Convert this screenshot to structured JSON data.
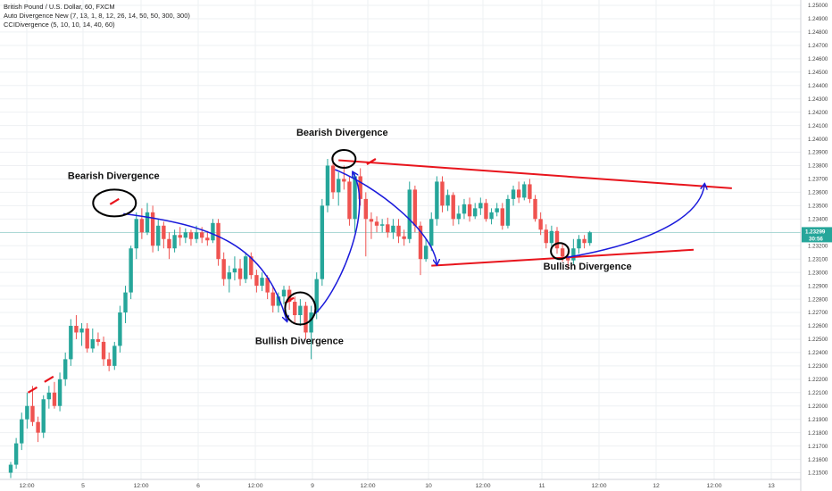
{
  "legend": {
    "title": "British Pound / U.S. Dollar, 60, FXCM",
    "indicator1": "Auto Divergence New (7, 13, 1, 8, 12, 26, 14, 50, 50, 300, 300)",
    "indicator2": "CCIDivergence (5, 10, 10, 14, 40, 60)"
  },
  "current_price": {
    "label": "1.23299",
    "countdown": "30:56",
    "value": 1.23299,
    "color": "#26a69a"
  },
  "colors": {
    "up": "#26a69a",
    "down": "#ef5350",
    "arrow": "#1a1adb",
    "trend": "#e8141c"
  },
  "annotations": [
    {
      "text": "Bearish Divergence",
      "type": "bearish"
    },
    {
      "text": "Bullish Divergence",
      "type": "bullish"
    },
    {
      "text": "Bearish Divergence",
      "type": "bearish"
    },
    {
      "text": "Bullish Divergence",
      "type": "bullish"
    }
  ],
  "chart_data": {
    "type": "candlestick",
    "title": "British Pound / U.S. Dollar, 60, FXCM",
    "ylim": [
      1.2145,
      1.2504
    ],
    "yticks": [
      "1.25000",
      "1.24900",
      "1.24800",
      "1.24700",
      "1.24600",
      "1.24500",
      "1.24400",
      "1.24300",
      "1.24200",
      "1.24100",
      "1.24000",
      "1.23900",
      "1.23800",
      "1.23700",
      "1.23600",
      "1.23500",
      "1.23400",
      "1.23300",
      "1.23200",
      "1.23100",
      "1.23000",
      "1.22900",
      "1.22800",
      "1.22700",
      "1.22600",
      "1.22500",
      "1.22400",
      "1.22300",
      "1.22200",
      "1.22100",
      "1.22000",
      "1.21900",
      "1.21800",
      "1.21700",
      "1.21600",
      "1.21500"
    ],
    "xticks": [
      "12:00",
      "5",
      "12:00",
      "6",
      "12:00",
      "9",
      "12:00",
      "10",
      "12:00",
      "11",
      "12:00",
      "12",
      "12:00",
      "13"
    ],
    "grid": true,
    "candles": [
      [
        1.215,
        1.2158,
        1.2146,
        1.2156
      ],
      [
        1.2156,
        1.2176,
        1.2153,
        1.2172
      ],
      [
        1.2172,
        1.2195,
        1.2167,
        1.219
      ],
      [
        1.219,
        1.221,
        1.2183,
        1.22
      ],
      [
        1.22,
        1.2215,
        1.2185,
        1.2188
      ],
      [
        1.2188,
        1.2192,
        1.2173,
        1.218
      ],
      [
        1.218,
        1.2208,
        1.2176,
        1.2205
      ],
      [
        1.2205,
        1.2215,
        1.2198,
        1.221
      ],
      [
        1.221,
        1.2218,
        1.2198,
        1.22
      ],
      [
        1.22,
        1.2225,
        1.2196,
        1.222
      ],
      [
        1.222,
        1.224,
        1.2215,
        1.2235
      ],
      [
        1.2235,
        1.2265,
        1.223,
        1.226
      ],
      [
        1.226,
        1.2268,
        1.225,
        1.2255
      ],
      [
        1.2255,
        1.2262,
        1.2245,
        1.2258
      ],
      [
        1.2258,
        1.2262,
        1.224,
        1.2243
      ],
      [
        1.2243,
        1.2258,
        1.224,
        1.225
      ],
      [
        1.225,
        1.2255,
        1.2245,
        1.2248
      ],
      [
        1.2248,
        1.2252,
        1.223,
        1.2235
      ],
      [
        1.2235,
        1.224,
        1.2226,
        1.223
      ],
      [
        1.223,
        1.2248,
        1.2227,
        1.2245
      ],
      [
        1.2245,
        1.2275,
        1.224,
        1.227
      ],
      [
        1.227,
        1.229,
        1.2262,
        1.2285
      ],
      [
        1.2285,
        1.232,
        1.228,
        1.2318
      ],
      [
        1.2318,
        1.2345,
        1.231,
        1.234
      ],
      [
        1.234,
        1.2348,
        1.2325,
        1.233
      ],
      [
        1.233,
        1.2352,
        1.2328,
        1.2345
      ],
      [
        1.2345,
        1.235,
        1.2315,
        1.232
      ],
      [
        1.232,
        1.234,
        1.2316,
        1.2335
      ],
      [
        1.2335,
        1.2338,
        1.2318,
        1.2325
      ],
      [
        1.2325,
        1.233,
        1.231,
        1.2318
      ],
      [
        1.2318,
        1.2332,
        1.2315,
        1.2328
      ],
      [
        1.2328,
        1.2334,
        1.232,
        1.2326
      ],
      [
        1.2326,
        1.2333,
        1.2322,
        1.233
      ],
      [
        1.233,
        1.2332,
        1.232,
        1.2325
      ],
      [
        1.2325,
        1.2335,
        1.2322,
        1.233
      ],
      [
        1.233,
        1.2334,
        1.2322,
        1.2326
      ],
      [
        1.2326,
        1.2331,
        1.232,
        1.2324
      ],
      [
        1.2324,
        1.234,
        1.2322,
        1.2337
      ],
      [
        1.2337,
        1.234,
        1.2305,
        1.231
      ],
      [
        1.231,
        1.2315,
        1.229,
        1.2295
      ],
      [
        1.2295,
        1.2305,
        1.2285,
        1.23
      ],
      [
        1.23,
        1.2312,
        1.2294,
        1.2303
      ],
      [
        1.2303,
        1.231,
        1.229,
        1.2295
      ],
      [
        1.2295,
        1.2315,
        1.2292,
        1.2312
      ],
      [
        1.2312,
        1.2315,
        1.2295,
        1.2298
      ],
      [
        1.2298,
        1.2302,
        1.2285,
        1.229
      ],
      [
        1.229,
        1.23,
        1.2286,
        1.2296
      ],
      [
        1.2296,
        1.2298,
        1.228,
        1.2285
      ],
      [
        1.2285,
        1.229,
        1.227,
        1.2275
      ],
      [
        1.2275,
        1.2285,
        1.227,
        1.2282
      ],
      [
        1.2282,
        1.229,
        1.2276,
        1.2287
      ],
      [
        1.2287,
        1.229,
        1.2272,
        1.2278
      ],
      [
        1.2278,
        1.2282,
        1.2262,
        1.2268
      ],
      [
        1.2268,
        1.228,
        1.226,
        1.2275
      ],
      [
        1.2275,
        1.2278,
        1.225,
        1.2255
      ],
      [
        1.2255,
        1.2275,
        1.2235,
        1.227
      ],
      [
        1.227,
        1.23,
        1.2265,
        1.2295
      ],
      [
        1.2295,
        1.2355,
        1.229,
        1.235
      ],
      [
        1.235,
        1.2385,
        1.2345,
        1.238
      ],
      [
        1.238,
        1.2388,
        1.2355,
        1.236
      ],
      [
        1.236,
        1.2375,
        1.235,
        1.237
      ],
      [
        1.237,
        1.238,
        1.2362,
        1.2368
      ],
      [
        1.2368,
        1.2372,
        1.2335,
        1.234
      ],
      [
        1.234,
        1.2375,
        1.233,
        1.2372
      ],
      [
        1.2372,
        1.2378,
        1.235,
        1.2355
      ],
      [
        1.2355,
        1.236,
        1.2312,
        1.234
      ],
      [
        1.234,
        1.2345,
        1.2325,
        1.2338
      ],
      [
        1.2338,
        1.2342,
        1.233,
        1.2335
      ],
      [
        1.2335,
        1.234,
        1.233,
        1.2336
      ],
      [
        1.2336,
        1.2341,
        1.2326,
        1.233
      ],
      [
        1.233,
        1.234,
        1.2325,
        1.2335
      ],
      [
        1.2335,
        1.234,
        1.2322,
        1.2327
      ],
      [
        1.2327,
        1.2332,
        1.232,
        1.2325
      ],
      [
        1.2325,
        1.2368,
        1.2322,
        1.2362
      ],
      [
        1.2362,
        1.2365,
        1.233,
        1.2335
      ],
      [
        1.2335,
        1.2338,
        1.2298,
        1.231
      ],
      [
        1.231,
        1.2325,
        1.2308,
        1.232
      ],
      [
        1.232,
        1.2345,
        1.2316,
        1.234
      ],
      [
        1.234,
        1.2372,
        1.2335,
        1.2368
      ],
      [
        1.2368,
        1.2372,
        1.2345,
        1.235
      ],
      [
        1.235,
        1.2362,
        1.2346,
        1.2358
      ],
      [
        1.2358,
        1.236,
        1.2335,
        1.234
      ],
      [
        1.234,
        1.235,
        1.2336,
        1.2344
      ],
      [
        1.2344,
        1.2355,
        1.234,
        1.2351
      ],
      [
        1.2351,
        1.2356,
        1.2338,
        1.2342
      ],
      [
        1.2342,
        1.2352,
        1.234,
        1.2348
      ],
      [
        1.2348,
        1.2356,
        1.2343,
        1.2352
      ],
      [
        1.2352,
        1.2355,
        1.2338,
        1.234
      ],
      [
        1.234,
        1.2348,
        1.2336,
        1.2345
      ],
      [
        1.2345,
        1.2352,
        1.2342,
        1.2348
      ],
      [
        1.2348,
        1.2352,
        1.2332,
        1.2335
      ],
      [
        1.2335,
        1.2358,
        1.2333,
        1.2355
      ],
      [
        1.2355,
        1.2365,
        1.235,
        1.2362
      ],
      [
        1.2362,
        1.2368,
        1.2352,
        1.2356
      ],
      [
        1.2356,
        1.2368,
        1.2354,
        1.2366
      ],
      [
        1.2366,
        1.237,
        1.2352,
        1.2355
      ],
      [
        1.2355,
        1.2358,
        1.2338,
        1.234
      ],
      [
        1.234,
        1.2345,
        1.2328,
        1.2332
      ],
      [
        1.2332,
        1.2336,
        1.2318,
        1.2322
      ],
      [
        1.2322,
        1.2335,
        1.2318,
        1.2331
      ],
      [
        1.2331,
        1.2334,
        1.2314,
        1.2318
      ],
      [
        1.2318,
        1.2322,
        1.2308,
        1.2312
      ],
      [
        1.2312,
        1.2316,
        1.2303,
        1.2309
      ],
      [
        1.2309,
        1.2325,
        1.2306,
        1.2318
      ],
      [
        1.2318,
        1.2328,
        1.2314,
        1.2325
      ],
      [
        1.2325,
        1.2328,
        1.2318,
        1.2322
      ],
      [
        1.2322,
        1.2331,
        1.232,
        1.233
      ]
    ],
    "series": [
      {
        "name": "Red indicator markers",
        "color": "#e8141c"
      }
    ],
    "markers": [
      {
        "candle": 4,
        "price": 1.2212
      },
      {
        "candle": 7,
        "price": 1.222
      },
      {
        "candle": 19,
        "price": 1.2353
      },
      {
        "candle": 51,
        "price": 1.2279
      },
      {
        "candle": 66,
        "price": 1.2383
      }
    ],
    "annotation_points": {
      "bearish_1": {
        "candle": 19,
        "price": 1.2352
      },
      "bullish_1": {
        "candle": 53,
        "price": 1.2275
      },
      "bearish_2": {
        "candle": 61,
        "price": 1.2385
      },
      "bullish_2": {
        "candle": 101,
        "price": 1.2316
      }
    },
    "trendlines": [
      {
        "name": "upper",
        "from": {
          "candle": 60,
          "price": 1.2384
        },
        "to": {
          "candle": 132,
          "price": 1.2363
        }
      },
      {
        "name": "lower",
        "from": {
          "candle": 77,
          "price": 1.2305
        },
        "to": {
          "candle": 125,
          "price": 1.2317
        }
      }
    ]
  }
}
